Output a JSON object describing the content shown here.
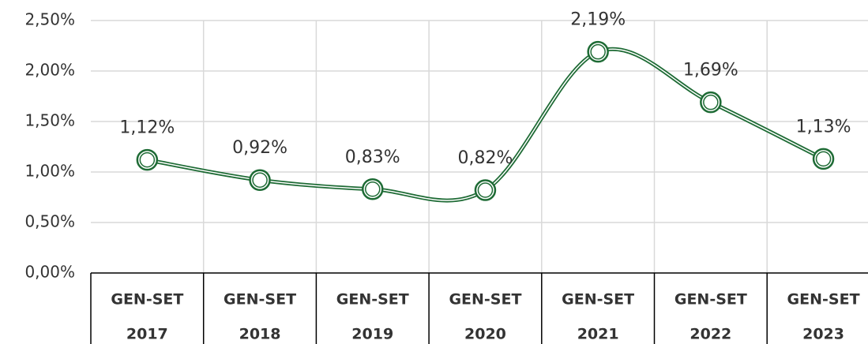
{
  "chart_data": {
    "type": "line",
    "categories": [
      [
        "GEN-SET",
        "2017"
      ],
      [
        "GEN-SET",
        "2018"
      ],
      [
        "GEN-SET",
        "2019"
      ],
      [
        "GEN-SET",
        "2020"
      ],
      [
        "GEN-SET",
        "2021"
      ],
      [
        "GEN-SET",
        "2022"
      ],
      [
        "GEN-SET",
        "2023"
      ]
    ],
    "series": [
      {
        "color": "#1e6b35",
        "values": [
          1.12,
          0.92,
          0.83,
          0.82,
          2.19,
          1.69,
          1.13
        ],
        "value_labels": [
          "1,12%",
          "0,92%",
          "0,83%",
          "0,82%",
          "2,19%",
          "1,69%",
          "1,13%"
        ]
      }
    ],
    "ylim": [
      0,
      2.5
    ],
    "yticks": [
      {
        "value": 0,
        "label": "0,00%"
      },
      {
        "value": 0.5,
        "label": "0,50%"
      },
      {
        "value": 1,
        "label": "1,00%"
      },
      {
        "value": 1.5,
        "label": "1,50%"
      },
      {
        "value": 2,
        "label": "2,00%"
      },
      {
        "value": 2.5,
        "label": "2,50%"
      }
    ],
    "grid": true
  }
}
